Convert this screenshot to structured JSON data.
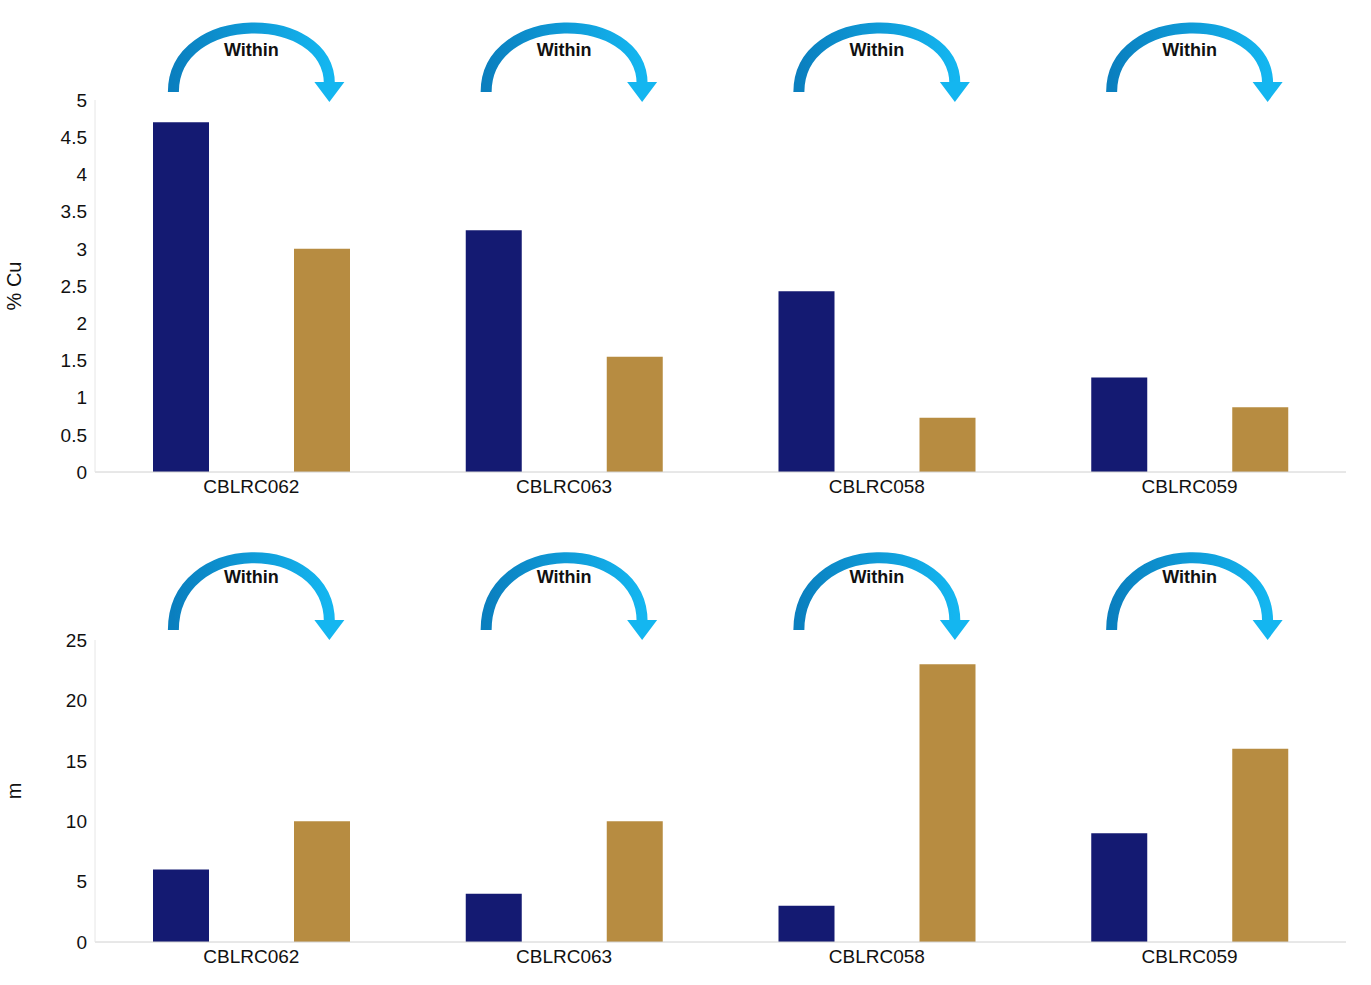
{
  "chart_data": [
    {
      "type": "bar",
      "y_label": "% Cu",
      "categories": [
        "CBLRC062",
        "CBLRC063",
        "CBLRC058",
        "CBLRC059"
      ],
      "series": [
        {
          "color": "#141a72",
          "values": [
            4.7,
            3.25,
            2.43,
            1.27
          ]
        },
        {
          "color": "#b78c41",
          "values": [
            3.0,
            1.55,
            0.73,
            0.87
          ]
        }
      ],
      "ylim": [
        0,
        5
      ],
      "yticks": [
        0,
        0.5,
        1,
        1.5,
        2,
        2.5,
        3,
        3.5,
        4,
        4.5,
        5
      ],
      "grid": false,
      "annotations": [
        "Within",
        "Within",
        "Within",
        "Within"
      ]
    },
    {
      "type": "bar",
      "y_label": "m",
      "categories": [
        "CBLRC062",
        "CBLRC063",
        "CBLRC058",
        "CBLRC059"
      ],
      "series": [
        {
          "color": "#141a72",
          "values": [
            6,
            4,
            3,
            9
          ]
        },
        {
          "color": "#b78c41",
          "values": [
            10,
            10,
            23,
            16
          ]
        }
      ],
      "ylim": [
        0,
        25
      ],
      "yticks": [
        0,
        5,
        10,
        15,
        20,
        25
      ],
      "grid": false,
      "annotations": [
        "Within",
        "Within",
        "Within",
        "Within"
      ]
    }
  ]
}
